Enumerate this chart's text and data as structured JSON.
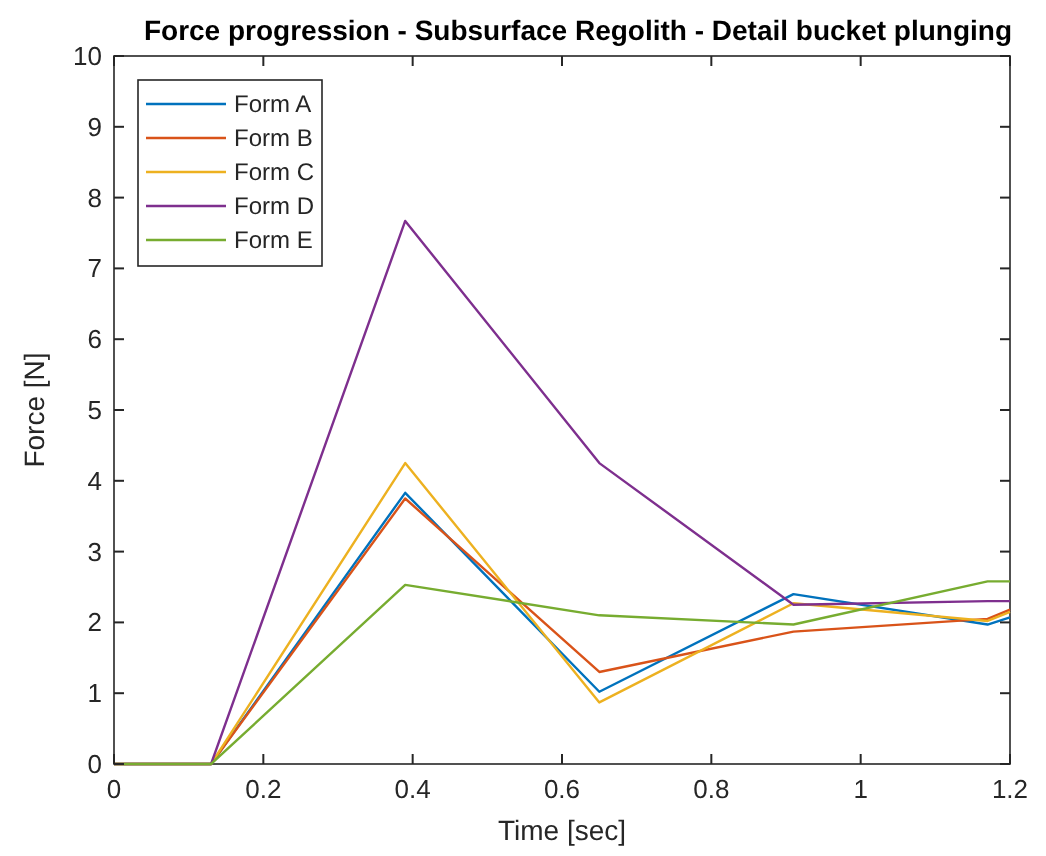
{
  "chart_data": {
    "type": "line",
    "title": "Force progression - Subsurface Regolith - Detail bucket plunging",
    "xlabel": "Time [sec]",
    "ylabel": "Force [N]",
    "x": [
      0,
      0.13,
      0.39,
      0.65,
      0.91,
      1.17,
      1.2
    ],
    "series": [
      {
        "name": "Form A",
        "color": "#0072bd",
        "values": [
          0,
          0,
          3.83,
          1.02,
          2.4,
          1.97,
          2.07
        ]
      },
      {
        "name": "Form B",
        "color": "#d95319",
        "values": [
          0,
          0,
          3.75,
          1.3,
          1.87,
          2.05,
          2.18
        ]
      },
      {
        "name": "Form C",
        "color": "#edb120",
        "values": [
          0,
          0,
          4.25,
          0.87,
          2.27,
          2.02,
          2.15
        ]
      },
      {
        "name": "Form D",
        "color": "#7e2f8e",
        "values": [
          0,
          0,
          7.67,
          4.25,
          2.25,
          2.3,
          2.3
        ]
      },
      {
        "name": "Form E",
        "color": "#77ac30",
        "values": [
          0,
          0,
          2.53,
          2.1,
          1.97,
          2.58,
          2.58
        ]
      }
    ],
    "xlim": [
      0,
      1.2
    ],
    "ylim": [
      0,
      10
    ],
    "xticks": [
      0,
      0.2,
      0.4,
      0.6,
      0.8,
      1,
      1.2
    ],
    "yticks": [
      0,
      1,
      2,
      3,
      4,
      5,
      6,
      7,
      8,
      9,
      10
    ],
    "grid": false,
    "legend": "top left",
    "marker": "none",
    "line_style": "solid"
  }
}
